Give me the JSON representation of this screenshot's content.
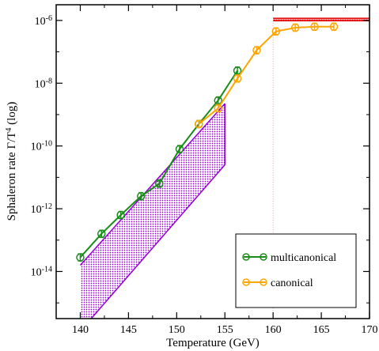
{
  "chart_data": {
    "type": "scatter",
    "xlabel": "Temperature (GeV)",
    "ylabel_main": "Sphaleron rate Γ/T",
    "ylabel_sup": "4",
    "ylabel_suffix": " (log)",
    "xlim": [
      137.5,
      170
    ],
    "ylim_log10": [
      -15.5,
      -5.5
    ],
    "y_scale": "log",
    "x_ticks": [
      140,
      145,
      150,
      155,
      160,
      165,
      170
    ],
    "y_ticks": [
      {
        "base": "10",
        "exp": "-14",
        "log10": -14
      },
      {
        "base": "10",
        "exp": "-12",
        "log10": -12
      },
      {
        "base": "10",
        "exp": "-10",
        "log10": -10
      },
      {
        "base": "10",
        "exp": "-8",
        "log10": -8
      },
      {
        "base": "10",
        "exp": "-6",
        "log10": -6
      }
    ],
    "series": [
      {
        "name": "multicanonical",
        "color": "#1a8c1a",
        "x": [
          140.0,
          142.2,
          144.2,
          146.3,
          148.2,
          150.3,
          152.3,
          154.3,
          156.3
        ],
        "log10_y": [
          -13.55,
          -12.8,
          -12.2,
          -11.6,
          -11.2,
          -10.1,
          -9.3,
          -8.55,
          -7.6
        ]
      },
      {
        "name": "canonical",
        "color": "#ffa500",
        "x": [
          152.3,
          154.3,
          156.3,
          158.3,
          160.3,
          162.3,
          164.3,
          166.3
        ],
        "log10_y": [
          -9.3,
          -8.8,
          -7.85,
          -6.95,
          -6.35,
          -6.23,
          -6.2,
          -6.2
        ]
      }
    ],
    "bands": [
      {
        "name": "purple-band",
        "color": "#9400d3",
        "x_range": [
          140,
          155
        ],
        "upper_log10": [
          -13.8,
          -8.65
        ],
        "lower_log10": [
          -15.9,
          -10.6
        ]
      },
      {
        "name": "red-band",
        "color": "#e00000",
        "x_range": [
          160,
          170
        ],
        "upper_log10": [
          -5.93,
          -5.93
        ],
        "lower_log10": [
          -6.01,
          -6.01
        ]
      }
    ],
    "vertical_marker_x": 160,
    "legend_position": "bottom-right",
    "grid": false
  }
}
